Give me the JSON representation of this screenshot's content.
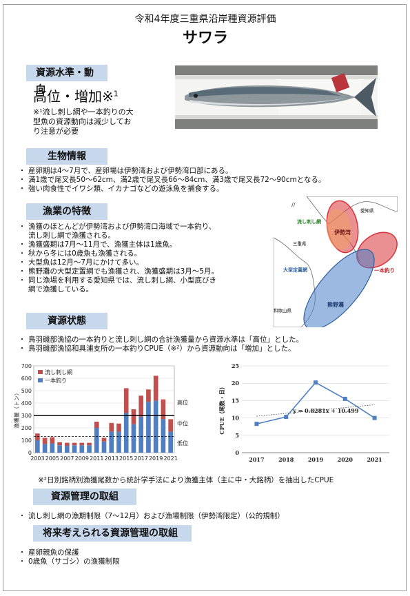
{
  "header": {
    "subtitle": "令和4年度三重県沿岸種資源評価",
    "title": "サワラ"
  },
  "status_section": {
    "heading": "資源水準・動向",
    "level": "高位・増加※",
    "footnote_mark": "1",
    "note": "※¹流し刺し網や一本釣りの大型魚の資源動向は減少しており注意が必要",
    "note_lines": [
      "※¹流し刺し網や一本釣りの大",
      "型魚の資源動向は減少してお",
      "り注意が必要"
    ]
  },
  "biology": {
    "heading": "生物情報",
    "items": [
      "産卵期は4～7月で、産卵場は伊勢湾および伊勢湾口部にある。",
      "満1歳で尾叉長50～62cm、満2歳で尾叉長66～84cm、満3歳で尾叉長72～90cmとなる。",
      "強い肉食性でイワシ類、イカナゴなどの遊泳魚を捕食する。"
    ]
  },
  "fishery": {
    "heading": "漁業の特徴",
    "items": [
      [
        "漁獲のほとんどが伊勢湾および伊勢湾口海域で一本釣り、",
        "流し刺し網で漁獲される。"
      ],
      [
        "漁獲盛期は7月～11月で、漁獲主体は1歳魚。"
      ],
      [
        "秋から冬には0歳魚も漁獲される。"
      ],
      [
        "大型魚は12月～7月にかけて多い。"
      ],
      [
        "熊野灘の大型定置網でも漁獲され、漁獲盛期は3月～5月。"
      ],
      [
        "同じ漁場を利用する愛知県では、流し刺し網、小型底びき",
        "網で漁獲している。"
      ]
    ]
  },
  "map": {
    "labels": {
      "aichi": "愛知県",
      "nagashi": "流し刺し網",
      "isewan": "伊勢湾",
      "mie": "三重県",
      "ipponzuri": "一本釣り",
      "teichi": "大型定置網",
      "kumano": "熊野灘",
      "wakayama": "和歌山県"
    },
    "colors": {
      "red": "#d9343a",
      "blue": "#4a7fc8"
    }
  },
  "resource": {
    "heading": "資源状態",
    "items": [
      "鳥羽磯部漁協の一本釣りと流し刺し網の合計漁獲量から資源水準は「高位」とした。",
      "鳥羽磯部漁協和具浦支所の一本釣りCPUE（※²）から資源動向は「増加」とした。"
    ]
  },
  "chart_data": [
    {
      "type": "bar",
      "stacked": true,
      "ylabel": "漁獲量（トン）",
      "ylim": [
        0,
        700
      ],
      "yticks": [
        0,
        100,
        200,
        300,
        400,
        500,
        600,
        700
      ],
      "categories": [
        "2003",
        "2004",
        "2005",
        "2006",
        "2007",
        "2008",
        "2009",
        "2010",
        "2011",
        "2012",
        "2013",
        "2014",
        "2015",
        "2016",
        "2017",
        "2018",
        "2019",
        "2020",
        "2021"
      ],
      "xtick_labels": [
        "2003",
        "2005",
        "2007",
        "2009",
        "2011",
        "2013",
        "2015",
        "2017",
        "2019",
        "2021"
      ],
      "series": [
        {
          "name": "一本釣り",
          "color": "#4f7fc0",
          "values": [
            100,
            70,
            75,
            60,
            55,
            60,
            60,
            60,
            200,
            90,
            170,
            170,
            320,
            230,
            290,
            410,
            420,
            270,
            170
          ]
        },
        {
          "name": "流し刺し網",
          "color": "#c0504d",
          "values": [
            55,
            50,
            50,
            25,
            25,
            20,
            20,
            20,
            50,
            30,
            70,
            65,
            200,
            120,
            170,
            100,
            200,
            160,
            100
          ]
        }
      ],
      "legend_position": "top-left",
      "reference_lines": [
        {
          "label": "高位",
          "value": 300
        },
        {
          "label": "中位",
          "value": 285
        },
        {
          "label": "低位",
          "value": 130
        }
      ],
      "level_labels": {
        "high": "高位",
        "mid": "中位",
        "low": "低位"
      }
    },
    {
      "type": "line",
      "ylabel": "CPUE（尾数・日）",
      "ylim": [
        0,
        25
      ],
      "yticks": [
        0,
        5,
        10,
        15,
        20,
        25
      ],
      "x": [
        "2017",
        "2018",
        "2019",
        "2020",
        "2021"
      ],
      "series": [
        {
          "values": [
            8.3,
            10.3,
            20.2,
            15.5,
            10.0
          ],
          "color": "#4f7fc0"
        }
      ],
      "trendline": {
        "slope": 0.8281,
        "intercept": 10.499,
        "label": "y = 0.8281x + 10.499"
      },
      "grid": true
    }
  ],
  "cpue_note": "※²日別銘柄別漁獲尾数から統計学手法により漁獲主体（主に中・大銘柄）を抽出したCPUE",
  "management": {
    "heading": "資源管理の取組",
    "items": [
      "流し刺し網の漁期制限（7～12月）および漁場制限（伊勢湾限定）（公的規制）"
    ]
  },
  "future": {
    "heading": "将来考えられる資源管理の取組",
    "items": [
      "産卵親魚の保護",
      "0歳魚（サゴシ）の漁獲制限"
    ]
  }
}
